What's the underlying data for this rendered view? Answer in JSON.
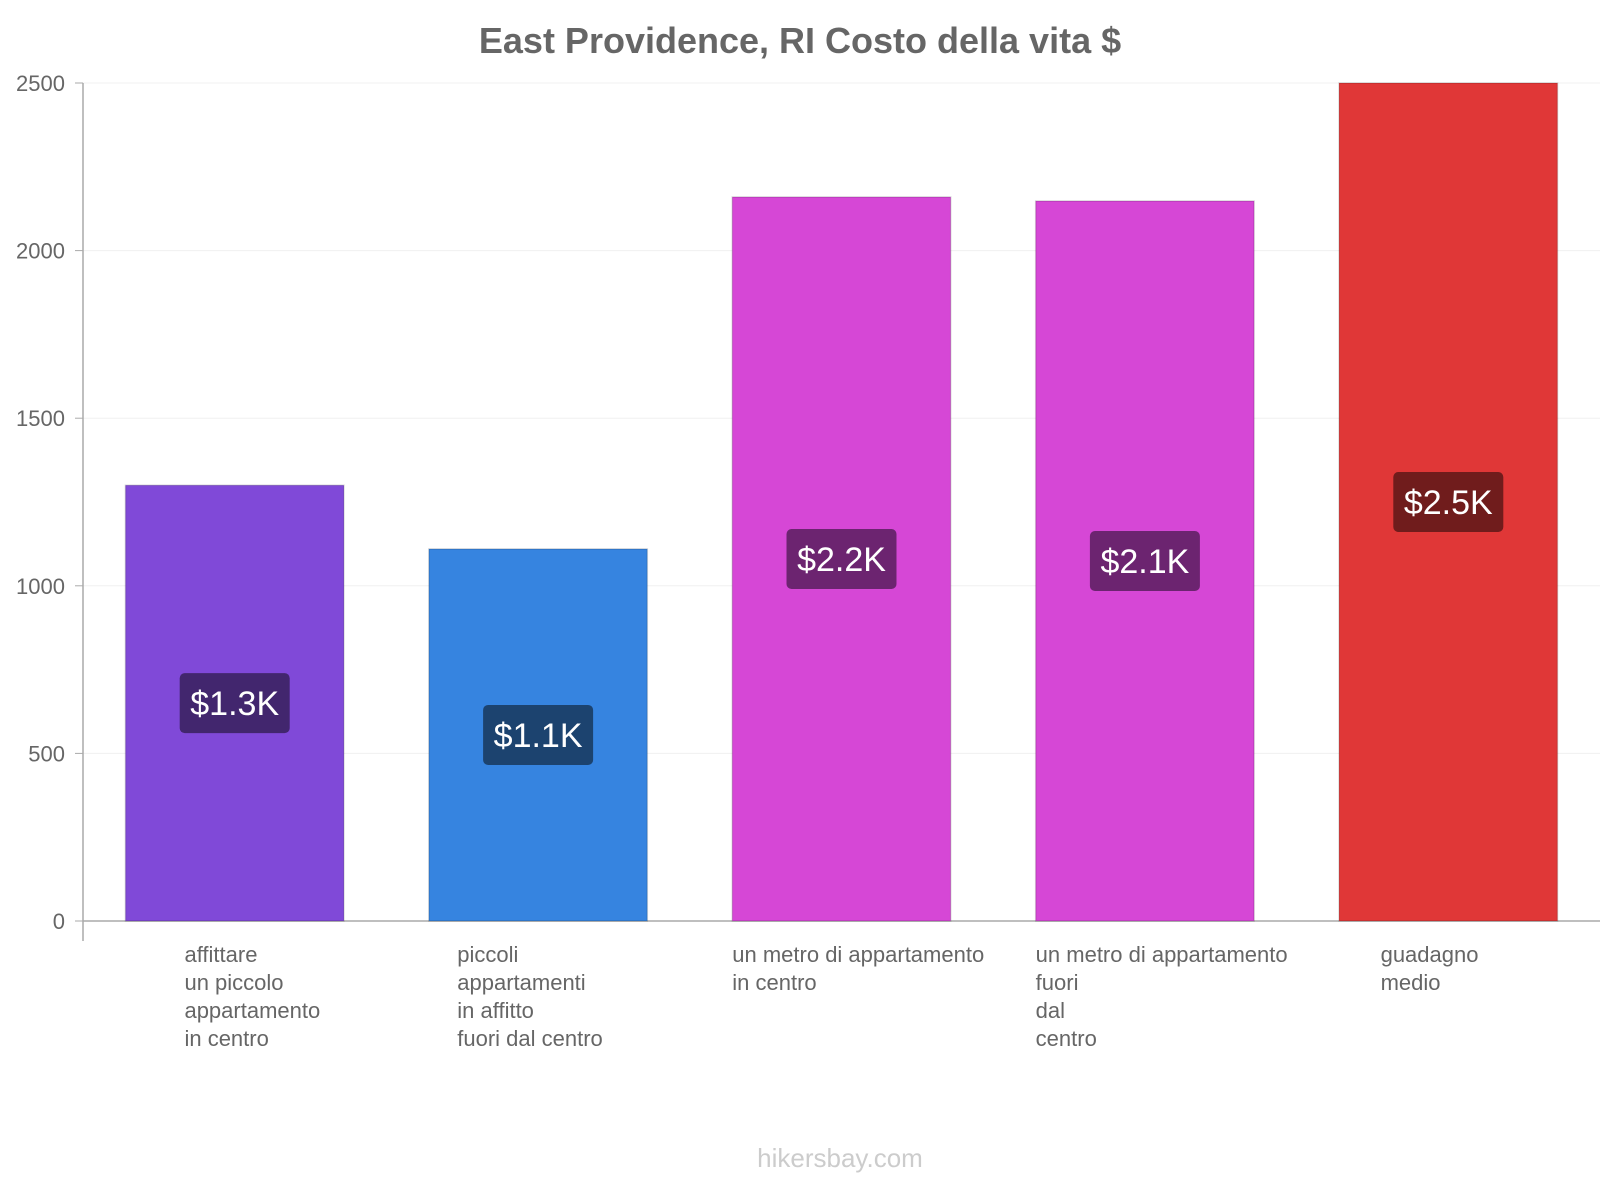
{
  "chart_data": {
    "type": "bar",
    "title": "East Providence, RI Costo della vita $",
    "xlabel": "",
    "ylabel": "",
    "ylim": [
      0,
      2500
    ],
    "yticks": [
      0,
      500,
      1000,
      1500,
      2000,
      2500
    ],
    "grid": true,
    "categories": [
      [
        "affittare",
        "un piccolo",
        "appartamento",
        "in centro"
      ],
      [
        "piccoli",
        "appartamenti",
        "in affitto",
        "fuori dal centro"
      ],
      [
        "un metro di appartamento",
        "in centro"
      ],
      [
        "un metro di appartamento",
        "fuori",
        "dal",
        "centro"
      ],
      [
        "guadagno",
        "medio"
      ]
    ],
    "values": [
      1300,
      1110,
      2160,
      2148,
      2500
    ],
    "value_labels": [
      "$1.3K",
      "$1.1K",
      "$2.2K",
      "$2.1K",
      "$2.5K"
    ],
    "bar_colors": [
      "#8049d8",
      "#3684e0",
      "#d647d6",
      "#d647d6",
      "#e03737"
    ],
    "label_bg_colors": [
      "#42266e",
      "#1c436f",
      "#6c2470",
      "#6c2470",
      "#701c1c"
    ]
  },
  "watermark": "hikersbay.com"
}
